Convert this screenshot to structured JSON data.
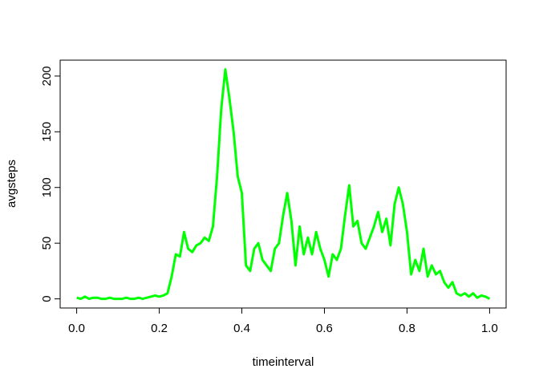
{
  "chart_data": {
    "type": "line",
    "xlabel": "timeinterval",
    "ylabel": "avgsteps",
    "x": [
      0,
      0.01,
      0.02,
      0.03,
      0.04,
      0.05,
      0.06,
      0.07,
      0.08,
      0.09,
      0.1,
      0.11,
      0.12,
      0.13,
      0.14,
      0.15,
      0.16,
      0.17,
      0.18,
      0.19,
      0.2,
      0.21,
      0.22,
      0.23,
      0.24,
      0.25,
      0.26,
      0.27,
      0.28,
      0.29,
      0.3,
      0.31,
      0.32,
      0.33,
      0.34,
      0.35,
      0.36,
      0.37,
      0.38,
      0.39,
      0.4,
      0.41,
      0.42,
      0.43,
      0.44,
      0.45,
      0.46,
      0.47,
      0.48,
      0.49,
      0.5,
      0.51,
      0.52,
      0.53,
      0.54,
      0.55,
      0.56,
      0.57,
      0.58,
      0.59,
      0.6,
      0.61,
      0.62,
      0.63,
      0.64,
      0.65,
      0.66,
      0.67,
      0.68,
      0.69,
      0.7,
      0.71,
      0.72,
      0.73,
      0.74,
      0.75,
      0.76,
      0.77,
      0.78,
      0.79,
      0.8,
      0.81,
      0.82,
      0.83,
      0.84,
      0.85,
      0.86,
      0.87,
      0.88,
      0.89,
      0.9,
      0.91,
      0.92,
      0.93,
      0.94,
      0.95,
      0.96,
      0.97,
      0.98,
      0.99,
      1
    ],
    "series": [
      {
        "name": "avgsteps",
        "color": "#00ff00",
        "values": [
          1,
          0,
          2,
          0,
          1,
          1,
          0,
          0,
          1,
          0,
          0,
          0,
          1,
          0,
          0,
          1,
          0,
          1,
          2,
          3,
          2,
          3,
          5,
          20,
          40,
          38,
          60,
          45,
          42,
          48,
          50,
          55,
          52,
          65,
          110,
          170,
          206,
          180,
          150,
          110,
          95,
          30,
          25,
          45,
          50,
          35,
          30,
          25,
          45,
          50,
          75,
          95,
          70,
          30,
          65,
          40,
          55,
          40,
          60,
          45,
          35,
          20,
          40,
          35,
          45,
          75,
          102,
          65,
          70,
          50,
          45,
          55,
          65,
          78,
          60,
          72,
          48,
          85,
          100,
          85,
          60,
          22,
          35,
          25,
          45,
          20,
          30,
          22,
          25,
          15,
          10,
          15,
          5,
          3,
          5,
          2,
          5,
          1,
          3,
          2,
          0
        ]
      }
    ],
    "xlim": [
      -0.04,
      1.04
    ],
    "ylim": [
      -8.2,
      214.3
    ],
    "xticks": [
      {
        "value": 0,
        "label": "0.0"
      },
      0.2,
      0.4,
      0.6,
      0.8,
      {
        "value": 1,
        "label": "1.0"
      }
    ],
    "yticks": [
      0,
      50,
      100,
      150,
      200
    ]
  }
}
